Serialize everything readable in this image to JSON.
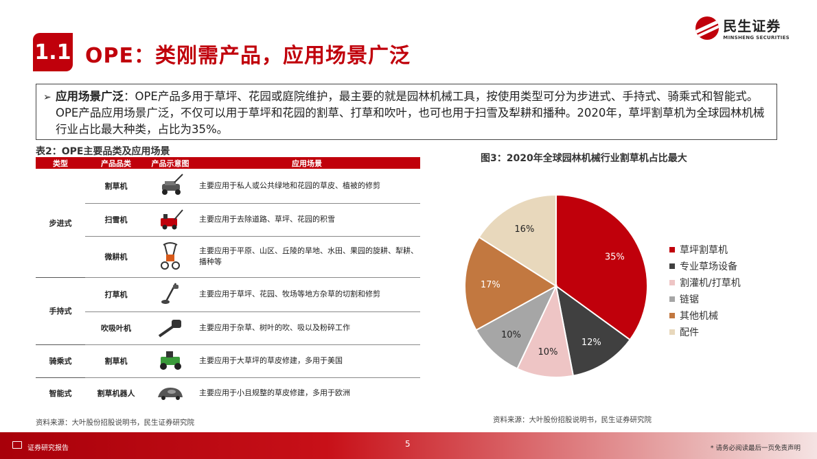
{
  "header": {
    "section_number": "1.1",
    "title": "OPE：类刚需产品，应用场景广泛",
    "logo_cn": "民生证券",
    "logo_en": "MINSHENG SECURITIES"
  },
  "summary": {
    "lead": "应用场景广泛",
    "text": "：OPE产品多用于草坪、花园或庭院维护，最主要的就是园林机械工具，按使用类型可分为步进式、手持式、骑乘式和智能式。OPE产品应用场景广泛，不仅可以用于草坪和花园的割草、打草和吹叶，也可也用于扫雪及犁耕和播种。2020年，草坪割草机为全球园林机械行业占比最大种类，占比为35%。"
  },
  "table": {
    "caption": "表2：OPE主要品类及应用场景",
    "headers": [
      "类型",
      "产品品类",
      "产品示意图",
      "应用场景"
    ],
    "groups": [
      {
        "type": "步进式",
        "rows": [
          {
            "product": "割草机",
            "icon": "lawn-mower-icon",
            "app": "主要应用于私人或公共绿地和花园的草皮、植被的修剪"
          },
          {
            "product": "扫雪机",
            "icon": "snow-blower-icon",
            "app": "主要应用于去除道路、草坪、花园的积雪"
          },
          {
            "product": "微耕机",
            "icon": "tiller-icon",
            "app": "主要应用于平原、山区、丘陵的旱地、水田、果园的旋耕、犁耕、播种等"
          }
        ]
      },
      {
        "type": "手持式",
        "rows": [
          {
            "product": "打草机",
            "icon": "string-trimmer-icon",
            "app": "主要应用于草坪、花园、牧场等地方杂草的切割和修剪"
          },
          {
            "product": "吹吸叶机",
            "icon": "leaf-blower-icon",
            "app": "主要应用于杂草、树叶的吹、吸以及粉碎工作"
          }
        ]
      },
      {
        "type": "骑乘式",
        "rows": [
          {
            "product": "割草机",
            "icon": "riding-mower-icon",
            "app": "主要应用于大草坪的草皮修建，多用于美国"
          }
        ]
      },
      {
        "type": "智能式",
        "rows": [
          {
            "product": "割草机器人",
            "icon": "robot-mower-icon",
            "app": "主要应用于小且规整的草皮修建，多用于欧洲"
          }
        ]
      }
    ],
    "source": "资料来源：大叶股份招股说明书，民生证券研究院"
  },
  "chart_data": {
    "type": "pie",
    "title": "图3：2020年全球园林机械行业割草机占比最大",
    "categories": [
      "草坪割草机",
      "专业草场设备",
      "割灌机/打草机",
      "链锯",
      "其他机械",
      "配件"
    ],
    "values": [
      35,
      12,
      10,
      10,
      17,
      16
    ],
    "labels": [
      "35%",
      "12%",
      "10%",
      "10%",
      "17%",
      "16%"
    ],
    "colors": [
      "#c0000b",
      "#404040",
      "#eec5c5",
      "#a6a6a6",
      "#c27840",
      "#e8d8bc"
    ],
    "label_colors": [
      "#ffffff",
      "#ffffff",
      "#222222",
      "#222222",
      "#ffffff",
      "#222222"
    ],
    "legend_position": "right",
    "source": "资料来源：大叶股份招股说明书，民生证券研究院"
  },
  "footer": {
    "report_label": "证券研究报告",
    "page_number": "5",
    "disclaimer": "* 请务必阅读最后一页免责声明"
  }
}
